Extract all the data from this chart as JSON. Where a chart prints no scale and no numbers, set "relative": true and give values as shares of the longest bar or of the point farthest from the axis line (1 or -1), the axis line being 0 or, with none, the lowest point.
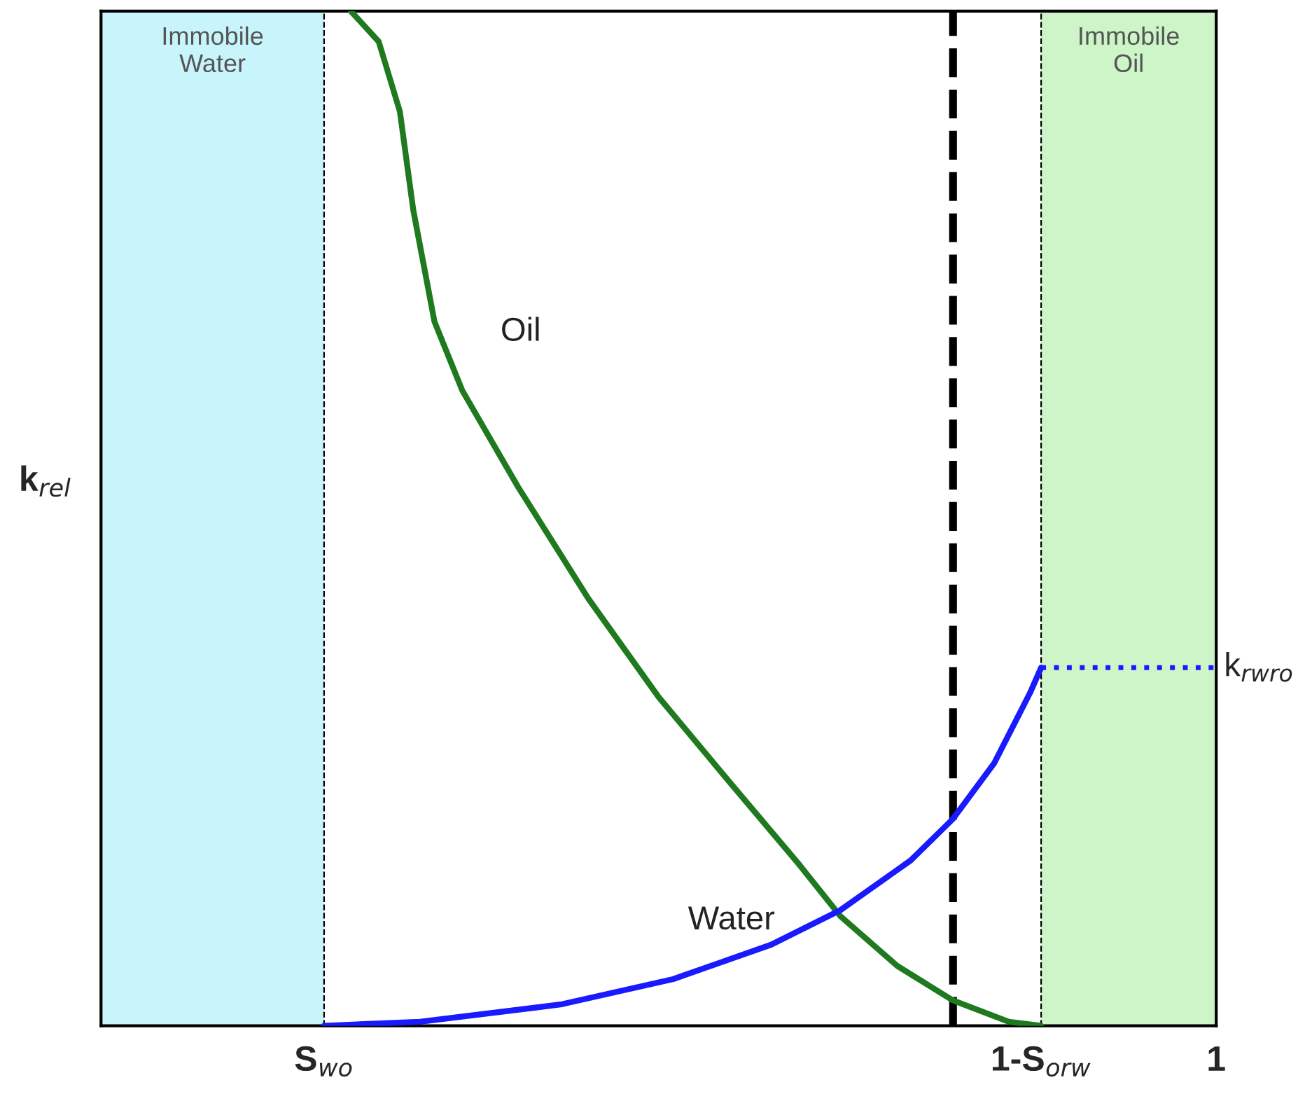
{
  "chart_data": {
    "type": "line",
    "relative": true,
    "ylabel": "k$_{rel}$",
    "xlim": [
      0,
      1
    ],
    "xticks": [
      {
        "value": 0.2,
        "label": "S$_{wo}$"
      },
      {
        "value": 0.843,
        "label": "1-S$_{orw}$"
      },
      {
        "value": 1,
        "label": "1"
      }
    ],
    "tick_labels": "x",
    "grid": "x",
    "legend": false,
    "line_style": "solid",
    "marker": "none",
    "series": [
      {
        "name": "Oil",
        "color": "#1f7a1f",
        "x": [
          0.224,
          0.249,
          0.268,
          0.28,
          0.299,
          0.324,
          0.374,
          0.437,
          0.5,
          0.563,
          0.626,
          0.663,
          0.714,
          0.764,
          0.814,
          0.843
        ],
        "values": [
          1.0,
          0.97,
          0.901,
          0.804,
          0.694,
          0.626,
          0.531,
          0.421,
          0.324,
          0.241,
          0.159,
          0.108,
          0.059,
          0.025,
          0.004,
          0.0
        ]
      },
      {
        "name": "Water",
        "color": "#1a1aff",
        "x": [
          0.2,
          0.286,
          0.412,
          0.513,
          0.601,
          0.663,
          0.726,
          0.764,
          0.801,
          0.833,
          0.843
        ],
        "values": [
          0,
          0.004,
          0.021,
          0.046,
          0.08,
          0.114,
          0.163,
          0.204,
          0.259,
          0.328,
          0.353
        ]
      },
      {
        "color": "#1a1aff",
        "line_style": "dotted",
        "x": [
          0.843,
          1
        ],
        "values": [
          0.353,
          0.353
        ]
      }
    ],
    "bands": [
      {
        "axis": "x",
        "from": 0,
        "to": 0.2,
        "label": "Immobile\nWater",
        "color": "#c8f4fb"
      },
      {
        "axis": "x",
        "from": 0.843,
        "to": 1,
        "label": "Immobile\nOil",
        "color": "#cdf5c8"
      }
    ],
    "ref_lines": [
      {
        "axis": "x",
        "value": 0.764,
        "color": "#000000",
        "line_style": "dashed"
      }
    ],
    "annotations": [
      {
        "text": "k$_{rwro}$",
        "x": 1,
        "y": 0.353
      }
    ]
  }
}
